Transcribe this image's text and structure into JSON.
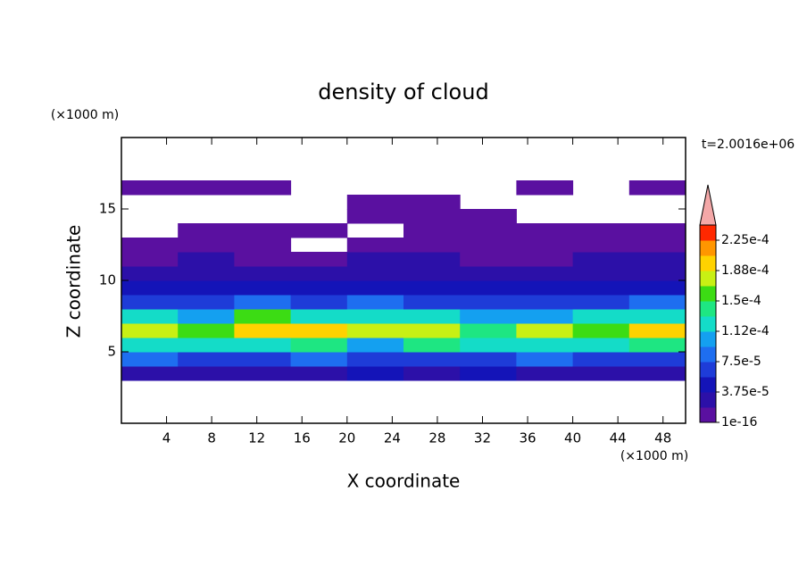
{
  "chart_data": {
    "type": "contour",
    "title": "density of cloud",
    "xlabel": "X coordinate",
    "ylabel": "Z coordinate",
    "xunit": "(×1000 m)",
    "yunit": "(×1000 m)",
    "time_label": "t=2.0016e+06",
    "xlim": [
      0,
      50
    ],
    "ylim": [
      0,
      20
    ],
    "xticks": [
      4,
      8,
      12,
      16,
      20,
      24,
      28,
      32,
      36,
      40,
      44,
      48
    ],
    "yticks": [
      5,
      10,
      15
    ],
    "xbins": [
      0,
      5,
      10,
      15,
      20,
      25,
      30,
      35,
      40,
      45,
      50
    ],
    "zbins": [
      3,
      4,
      5,
      6,
      7,
      8,
      9,
      10,
      11,
      12,
      13,
      14,
      15,
      16,
      17
    ],
    "values": [
      [
        3e-05,
        3e-05,
        3e-05,
        3e-05,
        4e-05,
        3e-05,
        4e-05,
        3e-05,
        3e-05,
        3e-05
      ],
      [
        8e-05,
        7e-05,
        7e-05,
        8e-05,
        6e-05,
        7e-05,
        6e-05,
        8e-05,
        7e-05,
        7e-05
      ],
      [
        0.00013,
        0.00012,
        0.00013,
        0.00014,
        0.00011,
        0.00014,
        0.00012,
        0.00013,
        0.00012,
        0.00014
      ],
      [
        0.00018,
        0.00016,
        0.0002,
        0.00019,
        0.00017,
        0.00018,
        0.00014,
        0.00018,
        0.00016,
        0.0002
      ],
      [
        0.00012,
        0.00011,
        0.00015,
        0.00013,
        0.00013,
        0.00012,
        0.0001,
        0.00011,
        0.00012,
        0.00013
      ],
      [
        7e-05,
        6e-05,
        8e-05,
        7e-05,
        8e-05,
        7e-05,
        6e-05,
        6e-05,
        7e-05,
        8e-05
      ],
      [
        4e-05,
        4e-05,
        5e-05,
        4e-05,
        5e-05,
        5e-05,
        4e-05,
        4e-05,
        5e-05,
        4e-05
      ],
      [
        2.5e-05,
        3e-05,
        3e-05,
        2.5e-05,
        3e-05,
        3e-05,
        2.5e-05,
        2e-05,
        3e-05,
        2.5e-05
      ],
      [
        1e-05,
        2e-05,
        1e-05,
        1e-05,
        2e-05,
        2e-05,
        1e-05,
        1e-05,
        2e-05,
        2e-05
      ],
      [
        5e-06,
        5e-06,
        5e-06,
        null,
        5e-06,
        5e-06,
        5e-06,
        5e-06,
        5e-06,
        5e-06
      ],
      [
        null,
        5e-06,
        5e-06,
        5e-06,
        null,
        5e-06,
        5e-06,
        5e-06,
        5e-06,
        5e-06
      ],
      [
        null,
        null,
        null,
        null,
        5e-06,
        5e-06,
        5e-06,
        null,
        null,
        null
      ],
      [
        null,
        null,
        null,
        null,
        5e-06,
        5e-06,
        null,
        null,
        null,
        null
      ],
      [
        5e-06,
        5e-06,
        5e-06,
        null,
        null,
        null,
        null,
        5e-06,
        null,
        5e-06
      ]
    ],
    "levels": [
      1e-16,
      1.875e-05,
      3.75e-05,
      5.625e-05,
      7.5e-05,
      9.375e-05,
      0.0001125,
      0.00013125,
      0.00015,
      0.00016875,
      0.0001875,
      0.00020625,
      0.000225,
      0.00024375
    ],
    "colors": [
      "#5a10a0",
      "#2c10a8",
      "#1414b8",
      "#1e3cd8",
      "#1e6ef0",
      "#14a0f0",
      "#14dcc8",
      "#1ee682",
      "#3cdc14",
      "#c8f014",
      "#ffd200",
      "#ff9600",
      "#ff2800"
    ],
    "extend_color": "#f4a8a8",
    "colorbar_ticks": [
      {
        "value": 1e-16,
        "label": "1e-16"
      },
      {
        "value": 3.75e-05,
        "label": "3.75e-5"
      },
      {
        "value": 7.5e-05,
        "label": "7.5e-5"
      },
      {
        "value": 0.0001125,
        "label": "1.12e-4"
      },
      {
        "value": 0.00015,
        "label": "1.5e-4"
      },
      {
        "value": 0.0001875,
        "label": "1.88e-4"
      },
      {
        "value": 0.000225,
        "label": "2.25e-4"
      }
    ]
  }
}
